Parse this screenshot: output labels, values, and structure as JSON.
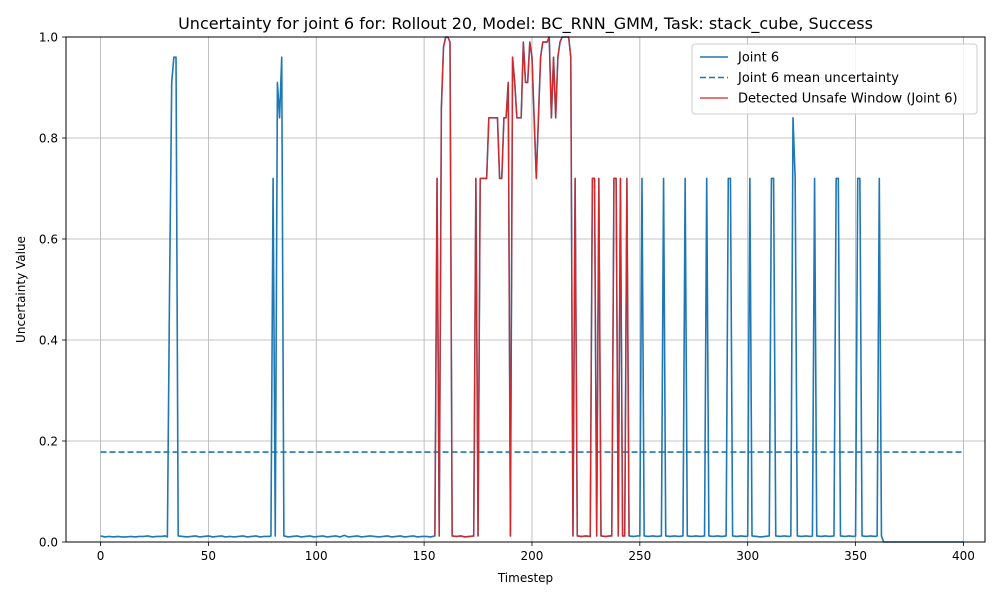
{
  "chart_data": {
    "type": "line",
    "title": "Uncertainty for joint 6 for: Rollout 20, Model: BC_RNN_GMM, Task: stack_cube, Success",
    "xlabel": "Timestep",
    "ylabel": "Uncertainty Value",
    "xlim": [
      -16,
      410
    ],
    "ylim": [
      0,
      1.0
    ],
    "xticks": [
      0,
      50,
      100,
      150,
      200,
      250,
      300,
      350,
      400
    ],
    "yticks": [
      0.0,
      0.2,
      0.4,
      0.6,
      0.8,
      1.0
    ],
    "xtick_labels": [
      "0",
      "50",
      "100",
      "150",
      "200",
      "250",
      "300",
      "350",
      "400"
    ],
    "ytick_labels": [
      "0.0",
      "0.2",
      "0.4",
      "0.6",
      "0.8",
      "1.0"
    ],
    "grid": true,
    "legend_position": "top-right",
    "colors": {
      "joint": "#1f77b4",
      "mean": "#1f77b4",
      "unsafe": "#d62728"
    },
    "series": [
      {
        "name": "Joint 6",
        "style": "solid",
        "points": [
          [
            0,
            0.012
          ],
          [
            2,
            0.01
          ],
          [
            4,
            0.011
          ],
          [
            6,
            0.01
          ],
          [
            8,
            0.011
          ],
          [
            10,
            0.01
          ],
          [
            12,
            0.01
          ],
          [
            14,
            0.011
          ],
          [
            16,
            0.01
          ],
          [
            18,
            0.011
          ],
          [
            20,
            0.011
          ],
          [
            22,
            0.012
          ],
          [
            24,
            0.01
          ],
          [
            26,
            0.011
          ],
          [
            28,
            0.011
          ],
          [
            30,
            0.012
          ],
          [
            31,
            0.01
          ],
          [
            32,
            0.5
          ],
          [
            33,
            0.91
          ],
          [
            34,
            0.96
          ],
          [
            35,
            0.96
          ],
          [
            36,
            0.012
          ],
          [
            38,
            0.011
          ],
          [
            40,
            0.01
          ],
          [
            42,
            0.011
          ],
          [
            44,
            0.012
          ],
          [
            46,
            0.01
          ],
          [
            48,
            0.011
          ],
          [
            50,
            0.012
          ],
          [
            52,
            0.01
          ],
          [
            54,
            0.011
          ],
          [
            56,
            0.012
          ],
          [
            58,
            0.01
          ],
          [
            60,
            0.011
          ],
          [
            62,
            0.01
          ],
          [
            64,
            0.011
          ],
          [
            66,
            0.012
          ],
          [
            68,
            0.01
          ],
          [
            70,
            0.011
          ],
          [
            72,
            0.012
          ],
          [
            74,
            0.01
          ],
          [
            76,
            0.011
          ],
          [
            78,
            0.011
          ],
          [
            79,
            0.012
          ],
          [
            80,
            0.72
          ],
          [
            81,
            0.012
          ],
          [
            82,
            0.91
          ],
          [
            83,
            0.84
          ],
          [
            84,
            0.96
          ],
          [
            85,
            0.012
          ],
          [
            87,
            0.01
          ],
          [
            89,
            0.011
          ],
          [
            91,
            0.012
          ],
          [
            93,
            0.01
          ],
          [
            95,
            0.011
          ],
          [
            97,
            0.012
          ],
          [
            99,
            0.01
          ],
          [
            101,
            0.011
          ],
          [
            103,
            0.012
          ],
          [
            105,
            0.01
          ],
          [
            107,
            0.011
          ],
          [
            109,
            0.012
          ],
          [
            111,
            0.01
          ],
          [
            113,
            0.013
          ],
          [
            115,
            0.01
          ],
          [
            117,
            0.011
          ],
          [
            119,
            0.012
          ],
          [
            121,
            0.01
          ],
          [
            123,
            0.011
          ],
          [
            125,
            0.012
          ],
          [
            127,
            0.011
          ],
          [
            129,
            0.01
          ],
          [
            131,
            0.011
          ],
          [
            133,
            0.012
          ],
          [
            135,
            0.01
          ],
          [
            137,
            0.011
          ],
          [
            139,
            0.012
          ],
          [
            141,
            0.01
          ],
          [
            143,
            0.011
          ],
          [
            145,
            0.012
          ],
          [
            147,
            0.01
          ],
          [
            149,
            0.011
          ],
          [
            151,
            0.011
          ],
          [
            153,
            0.01
          ],
          [
            155,
            0.012
          ],
          [
            156,
            0.72
          ],
          [
            157,
            0.012
          ],
          [
            158,
            0.86
          ],
          [
            159,
            0.98
          ],
          [
            160,
            1.0
          ],
          [
            161,
            1.0
          ],
          [
            162,
            0.99
          ],
          [
            163,
            0.012
          ],
          [
            165,
            0.011
          ],
          [
            167,
            0.012
          ],
          [
            169,
            0.01
          ],
          [
            171,
            0.011
          ],
          [
            173,
            0.012
          ],
          [
            174,
            0.72
          ],
          [
            175,
            0.012
          ],
          [
            176,
            0.72
          ],
          [
            177,
            0.72
          ],
          [
            178,
            0.72
          ],
          [
            179,
            0.72
          ],
          [
            180,
            0.84
          ],
          [
            181,
            0.84
          ],
          [
            182,
            0.84
          ],
          [
            183,
            0.84
          ],
          [
            184,
            0.84
          ],
          [
            185,
            0.72
          ],
          [
            186,
            0.72
          ],
          [
            187,
            0.84
          ],
          [
            188,
            0.84
          ],
          [
            189,
            0.91
          ],
          [
            190,
            0.012
          ],
          [
            191,
            0.96
          ],
          [
            192,
            0.91
          ],
          [
            193,
            0.84
          ],
          [
            194,
            0.84
          ],
          [
            195,
            0.84
          ],
          [
            196,
            0.99
          ],
          [
            197,
            0.91
          ],
          [
            198,
            0.91
          ],
          [
            199,
            0.99
          ],
          [
            200,
            0.96
          ],
          [
            201,
            0.84
          ],
          [
            202,
            0.72
          ],
          [
            203,
            0.84
          ],
          [
            204,
            0.96
          ],
          [
            205,
            0.99
          ],
          [
            206,
            0.99
          ],
          [
            207,
            0.99
          ],
          [
            208,
            1.0
          ],
          [
            209,
            0.84
          ],
          [
            210,
            0.96
          ],
          [
            211,
            0.84
          ],
          [
            212,
            0.96
          ],
          [
            213,
            0.99
          ],
          [
            214,
            1.0
          ],
          [
            215,
            1.0
          ],
          [
            216,
            1.0
          ],
          [
            217,
            1.0
          ],
          [
            218,
            0.96
          ],
          [
            219,
            0.012
          ],
          [
            220,
            0.72
          ],
          [
            221,
            0.012
          ],
          [
            223,
            0.011
          ],
          [
            225,
            0.012
          ],
          [
            227,
            0.011
          ],
          [
            228,
            0.72
          ],
          [
            229,
            0.72
          ],
          [
            230,
            0.012
          ],
          [
            231,
            0.72
          ],
          [
            232,
            0.012
          ],
          [
            234,
            0.011
          ],
          [
            236,
            0.012
          ],
          [
            237,
            0.012
          ],
          [
            238,
            0.72
          ],
          [
            239,
            0.72
          ],
          [
            240,
            0.012
          ],
          [
            241,
            0.72
          ],
          [
            242,
            0.012
          ],
          [
            243,
            0.012
          ],
          [
            244,
            0.72
          ],
          [
            245,
            0.012
          ],
          [
            247,
            0.011
          ],
          [
            249,
            0.012
          ],
          [
            250,
            0.012
          ],
          [
            251,
            0.72
          ],
          [
            252,
            0.012
          ],
          [
            254,
            0.011
          ],
          [
            256,
            0.012
          ],
          [
            258,
            0.011
          ],
          [
            260,
            0.012
          ],
          [
            261,
            0.72
          ],
          [
            262,
            0.012
          ],
          [
            264,
            0.011
          ],
          [
            266,
            0.012
          ],
          [
            268,
            0.011
          ],
          [
            270,
            0.012
          ],
          [
            271,
            0.72
          ],
          [
            272,
            0.012
          ],
          [
            274,
            0.011
          ],
          [
            276,
            0.012
          ],
          [
            278,
            0.011
          ],
          [
            280,
            0.012
          ],
          [
            281,
            0.72
          ],
          [
            282,
            0.012
          ],
          [
            284,
            0.011
          ],
          [
            286,
            0.012
          ],
          [
            288,
            0.011
          ],
          [
            290,
            0.012
          ],
          [
            291,
            0.72
          ],
          [
            292,
            0.72
          ],
          [
            293,
            0.012
          ],
          [
            295,
            0.011
          ],
          [
            297,
            0.012
          ],
          [
            299,
            0.011
          ],
          [
            300,
            0.012
          ],
          [
            301,
            0.72
          ],
          [
            302,
            0.012
          ],
          [
            304,
            0.011
          ],
          [
            306,
            0.01
          ],
          [
            308,
            0.011
          ],
          [
            310,
            0.012
          ],
          [
            311,
            0.72
          ],
          [
            312,
            0.72
          ],
          [
            313,
            0.012
          ],
          [
            315,
            0.011
          ],
          [
            317,
            0.012
          ],
          [
            319,
            0.011
          ],
          [
            320,
            0.012
          ],
          [
            321,
            0.84
          ],
          [
            322,
            0.72
          ],
          [
            323,
            0.012
          ],
          [
            325,
            0.011
          ],
          [
            327,
            0.012
          ],
          [
            329,
            0.011
          ],
          [
            330,
            0.012
          ],
          [
            331,
            0.72
          ],
          [
            332,
            0.012
          ],
          [
            334,
            0.011
          ],
          [
            336,
            0.012
          ],
          [
            338,
            0.011
          ],
          [
            340,
            0.012
          ],
          [
            341,
            0.72
          ],
          [
            342,
            0.72
          ],
          [
            343,
            0.012
          ],
          [
            345,
            0.011
          ],
          [
            347,
            0.012
          ],
          [
            349,
            0.011
          ],
          [
            350,
            0.012
          ],
          [
            351,
            0.72
          ],
          [
            352,
            0.72
          ],
          [
            353,
            0.012
          ],
          [
            355,
            0.011
          ],
          [
            357,
            0.012
          ],
          [
            359,
            0.011
          ],
          [
            360,
            0.012
          ],
          [
            361,
            0.72
          ],
          [
            362,
            0.012
          ],
          [
            363,
            0.0
          ],
          [
            370,
            0.0
          ],
          [
            380,
            0.0
          ],
          [
            390,
            0.0
          ],
          [
            400,
            0.0
          ]
        ]
      },
      {
        "name": "Joint 6 mean uncertainty",
        "style": "dashed",
        "points": [
          [
            0,
            0.178
          ],
          [
            400,
            0.178
          ]
        ]
      },
      {
        "name": "Detected Unsafe Window (Joint 6)",
        "style": "solid",
        "x_range": [
          155,
          245
        ]
      }
    ]
  }
}
